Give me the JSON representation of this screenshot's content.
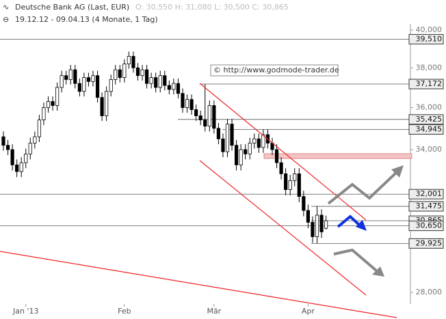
{
  "chart_data": {
    "type": "candlestick",
    "title": "Deutsche Bank AG (Last, EUR)",
    "quote": "O: 30,550  H: 31,080  L: 30,500  C: 30,865",
    "subtitle": "19.12.12 - 09.04.13 (4 Monate, 1 Tag)",
    "watermark": "© http://www.godmode-trader.de",
    "log_scale": true,
    "up_color": "#ffffff",
    "down_color": "#000000",
    "ylim": [
      27560,
      40340
    ],
    "yticks": [
      {
        "value": 28000,
        "label": "28,000"
      },
      {
        "value": 34000,
        "label": "34,000"
      },
      {
        "value": 36000,
        "label": "36,000"
      },
      {
        "value": 38000,
        "label": "38,000"
      },
      {
        "value": 40000,
        "label": "40,000"
      }
    ],
    "categories": [
      null,
      null,
      null,
      null,
      null,
      "Jan '13",
      null,
      null,
      null,
      null,
      null,
      null,
      null,
      null,
      null,
      null,
      null,
      null,
      null,
      null,
      null,
      null,
      null,
      null,
      null,
      null,
      null,
      "Feb",
      null,
      null,
      null,
      null,
      null,
      null,
      null,
      null,
      null,
      null,
      null,
      null,
      null,
      null,
      null,
      null,
      null,
      null,
      null,
      "Mär",
      null,
      null,
      null,
      null,
      null,
      null,
      null,
      null,
      null,
      null,
      null,
      null,
      null,
      null,
      null,
      null,
      null,
      null,
      null,
      null,
      "Apr",
      null,
      null,
      null,
      null
    ],
    "open": [
      34600,
      34200,
      34000,
      33300,
      33000,
      33400,
      33800,
      34300,
      34600,
      35400,
      36000,
      36300,
      36100,
      37000,
      37600,
      37400,
      37900,
      37200,
      36800,
      37500,
      37300,
      37600,
      36500,
      35600,
      36800,
      37400,
      37900,
      37500,
      38200,
      38600,
      38000,
      37600,
      37900,
      37200,
      37500,
      37000,
      37600,
      37100,
      36900,
      37200,
      36700,
      36000,
      36400,
      35900,
      35600,
      35400,
      35100,
      36100,
      35000,
      34500,
      33900,
      35200,
      34200,
      33300,
      34000,
      33800,
      34300,
      34500,
      34100,
      34700,
      34300,
      34000,
      33400,
      32900,
      32200,
      32600,
      32900,
      31900,
      31300,
      30800,
      30200,
      31100,
      30550
    ],
    "high": [
      34850,
      34450,
      34250,
      33550,
      33650,
      34050,
      34550,
      34850,
      35650,
      36250,
      36550,
      36550,
      37250,
      37850,
      37850,
      38150,
      38150,
      37450,
      37750,
      37750,
      37850,
      37850,
      36750,
      37050,
      37650,
      38150,
      38150,
      38450,
      38850,
      38850,
      38250,
      38150,
      38150,
      37750,
      37750,
      37850,
      37850,
      37350,
      37450,
      37450,
      36950,
      36650,
      36650,
      36150,
      35850,
      37172,
      36350,
      36350,
      35250,
      34750,
      35450,
      35450,
      34450,
      34250,
      34250,
      34550,
      34750,
      34750,
      34950,
      34950,
      34550,
      34250,
      33650,
      33150,
      32850,
      33150,
      33150,
      32150,
      31550,
      31050,
      31475,
      31350,
      31080
    ],
    "low": [
      33950,
      33750,
      33050,
      32750,
      32750,
      33150,
      33550,
      34050,
      34350,
      35150,
      35750,
      35850,
      35850,
      36750,
      37150,
      37150,
      36950,
      36550,
      36550,
      37050,
      37050,
      36250,
      35350,
      35350,
      36550,
      37150,
      37250,
      37250,
      37950,
      37750,
      37350,
      37350,
      36950,
      36950,
      36750,
      36750,
      36850,
      36650,
      36650,
      36450,
      35750,
      35750,
      35650,
      35350,
      35150,
      34850,
      34850,
      34750,
      34250,
      33650,
      33650,
      33950,
      33050,
      33050,
      33550,
      33550,
      34050,
      33850,
      33850,
      34050,
      33750,
      33150,
      32650,
      31950,
      31950,
      32350,
      31650,
      31050,
      30550,
      29950,
      29925,
      30150,
      30500
    ],
    "close": [
      34200,
      34000,
      33300,
      33000,
      33400,
      33800,
      34300,
      34600,
      35400,
      36000,
      36300,
      36100,
      37000,
      37600,
      37400,
      37900,
      37200,
      36800,
      37500,
      37300,
      37600,
      36500,
      35600,
      36800,
      37400,
      37900,
      37500,
      38200,
      38600,
      38000,
      37600,
      37900,
      37200,
      37500,
      37000,
      37600,
      37100,
      36900,
      37200,
      36700,
      36000,
      36400,
      35900,
      35600,
      35400,
      35100,
      36100,
      35000,
      34500,
      33900,
      35200,
      34200,
      33300,
      34000,
      33800,
      34300,
      34500,
      34100,
      34700,
      34300,
      34000,
      33400,
      32900,
      32200,
      32600,
      32900,
      31900,
      31300,
      30800,
      30200,
      31100,
      30400,
      30865
    ],
    "levels": [
      {
        "value": 39510,
        "label": "39,510"
      },
      {
        "value": 37172,
        "label": "37,172"
      },
      {
        "value": 35425,
        "label": "35,425"
      },
      {
        "value": 34945,
        "label": "34,945"
      },
      {
        "value": 32001,
        "label": "32,001"
      },
      {
        "value": 31475,
        "label": "31,475"
      },
      {
        "value": 30865,
        "label": "30,865"
      },
      {
        "value": 30650,
        "label": "30,650"
      },
      {
        "value": 29925,
        "label": "29,925"
      }
    ]
  }
}
